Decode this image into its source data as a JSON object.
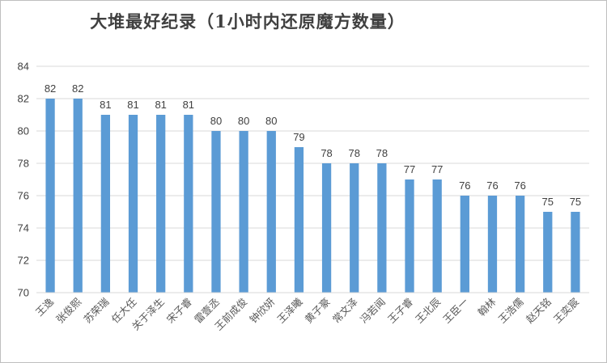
{
  "chart_data": {
    "type": "bar",
    "title": "大堆最好纪录（1小时内还原魔方数量）",
    "categories": [
      "王逸",
      "张俊熙",
      "苏荣瑞",
      "任大任",
      "关于泽生",
      "宋子睿",
      "雷壹丞",
      "王前成俊",
      "钟欣妍",
      "王泽曦",
      "黄子豪",
      "常文泽",
      "冯若闻",
      "王子睿",
      "王北辰",
      "王臣一",
      "翰林",
      "王浩儒",
      "赵天铭",
      "王奕宸"
    ],
    "values": [
      82,
      82,
      81,
      81,
      81,
      81,
      80,
      80,
      80,
      79,
      78,
      78,
      78,
      77,
      77,
      76,
      76,
      76,
      75,
      75
    ],
    "ylim": [
      70,
      84
    ],
    "yticks": [
      70,
      72,
      74,
      76,
      78,
      80,
      82,
      84
    ],
    "grid": true,
    "bar_color": "#5b9bd5",
    "grid_color": "#d9d9d9"
  }
}
